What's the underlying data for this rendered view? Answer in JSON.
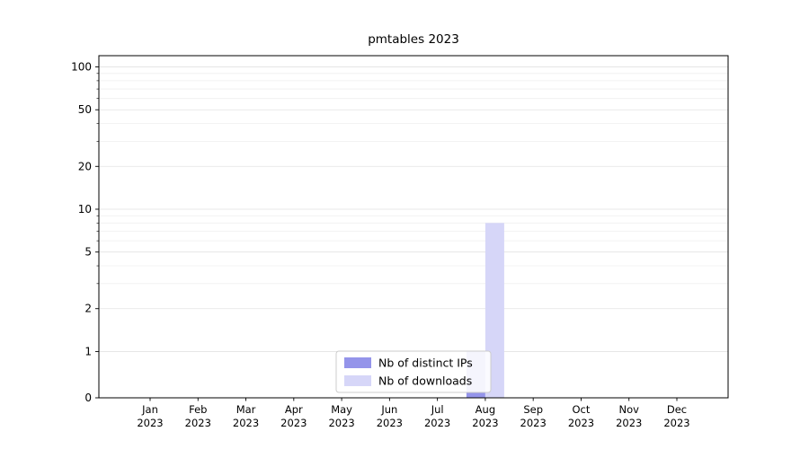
{
  "chart_data": {
    "type": "bar",
    "title": "pmtables 2023",
    "categories": [
      "Jan",
      "Feb",
      "Mar",
      "Apr",
      "May",
      "Jun",
      "Jul",
      "Aug",
      "Sep",
      "Oct",
      "Nov",
      "Dec"
    ],
    "year_label": "2023",
    "series": [
      {
        "name": "Nb of distinct IPs",
        "color": "#9494ea",
        "values": [
          0,
          0,
          0,
          0,
          0,
          0,
          0,
          1,
          0,
          0,
          0,
          0
        ]
      },
      {
        "name": "Nb of downloads",
        "color": "#d6d6f8",
        "values": [
          0,
          0,
          0,
          0,
          0,
          0,
          0,
          8,
          0,
          0,
          0,
          0
        ]
      }
    ],
    "yscale": "symlog",
    "yticks": [
      0,
      1,
      2,
      5,
      10,
      20,
      50,
      100
    ],
    "minor_yticks": [
      3,
      4,
      6,
      7,
      8,
      9,
      30,
      40,
      60,
      70,
      80,
      90
    ],
    "ylim": [
      0,
      120
    ],
    "xlabel": "",
    "ylabel": "",
    "grid": true,
    "legend_position": "lower center",
    "legend_border_color": "#cccccc",
    "grid_major_color": "#e2e2e2",
    "grid_minor_color": "#efefef"
  }
}
